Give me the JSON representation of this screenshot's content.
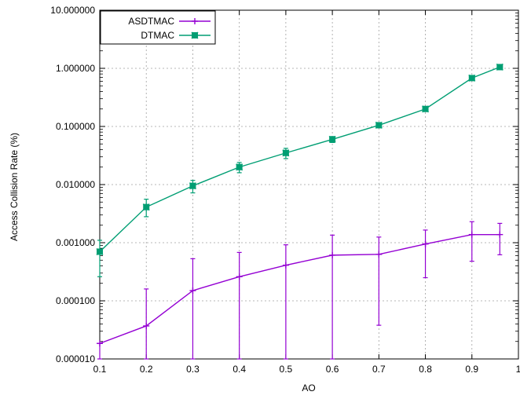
{
  "chart_data": {
    "type": "line",
    "xlabel": "AO",
    "ylabel": "Access Collision Rate (%)",
    "xlim": [
      0.1,
      1.0
    ],
    "ylim": [
      1e-05,
      10
    ],
    "yscale": "log",
    "grid": true,
    "legend_position": "top-left",
    "x_ticks": [
      "0.1",
      "0.2",
      "0.3",
      "0.4",
      "0.5",
      "0.6",
      "0.7",
      "0.8",
      "0.9",
      "1"
    ],
    "y_ticks": [
      "0.000010",
      "0.000100",
      "0.001000",
      "0.010000",
      "0.100000",
      "1.000000",
      "10.000000"
    ],
    "series": [
      {
        "name": "ASDTMAC",
        "color": "#9400d3",
        "marker": "plus",
        "x": [
          0.1,
          0.2,
          0.3,
          0.4,
          0.5,
          0.6,
          0.7,
          0.8,
          0.9,
          0.96
        ],
        "y": [
          1.85e-05,
          3.7e-05,
          0.00015,
          0.00026,
          0.00041,
          0.00061,
          0.00063,
          0.00095,
          0.00138,
          0.00138
        ],
        "y_low": [
          1e-05,
          1e-05,
          1e-05,
          1e-05,
          1e-05,
          1e-05,
          3.8e-05,
          0.00025,
          0.00048,
          0.00062
        ],
        "y_high": [
          1.85e-05,
          0.00016,
          0.00053,
          0.00068,
          0.00092,
          0.00135,
          0.00125,
          0.00165,
          0.0023,
          0.00215
        ]
      },
      {
        "name": "DTMAC",
        "color": "#009e73",
        "marker": "cross",
        "x": [
          0.1,
          0.2,
          0.3,
          0.4,
          0.5,
          0.6,
          0.7,
          0.8,
          0.9,
          0.96
        ],
        "y": [
          0.0007,
          0.0041,
          0.0095,
          0.02,
          0.035,
          0.06,
          0.105,
          0.2,
          0.68,
          1.05
        ],
        "y_low": [
          0.00026,
          0.0028,
          0.0072,
          0.016,
          0.028,
          0.053,
          0.099,
          0.19,
          0.62,
          1.0
        ],
        "y_high": [
          0.0011,
          0.0056,
          0.0118,
          0.024,
          0.042,
          0.067,
          0.111,
          0.215,
          0.74,
          1.1
        ]
      }
    ]
  }
}
